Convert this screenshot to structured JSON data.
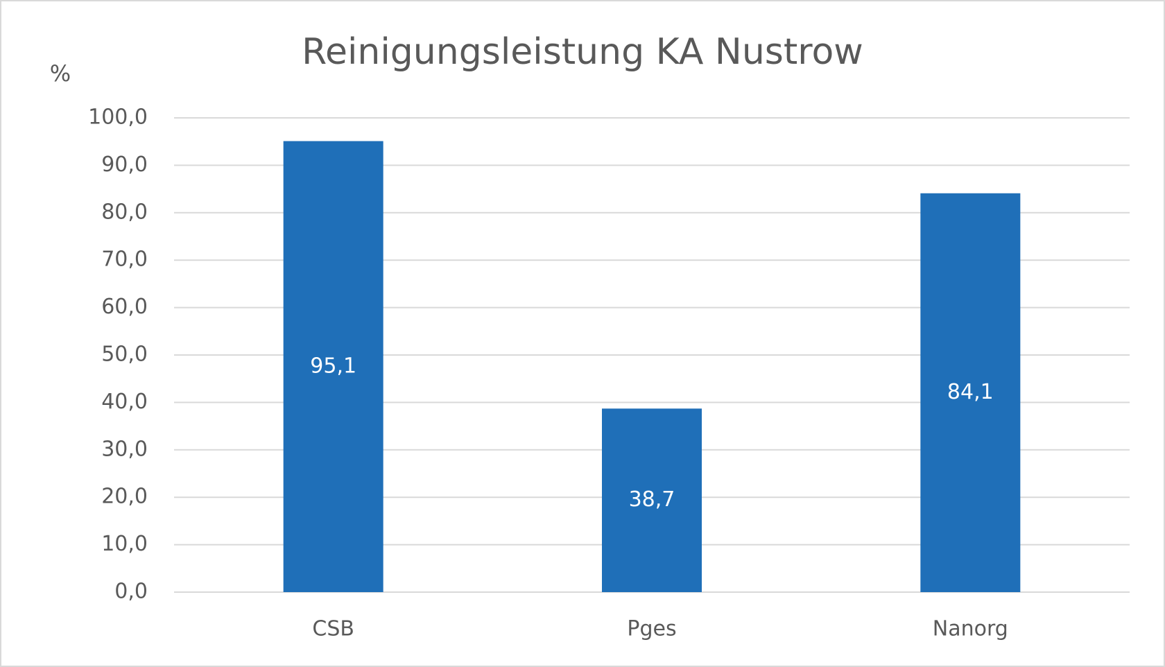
{
  "chart_data": {
    "type": "bar",
    "title": "Reinigungsleistung KA Nustrow",
    "y_label": "%",
    "categories": [
      "CSB",
      "Pges",
      "Nanorg"
    ],
    "values": [
      95.1,
      38.7,
      84.1
    ],
    "value_labels": [
      "95,1",
      "38,7",
      "84,1"
    ],
    "color": "#1f6fb8",
    "ylim": [
      0,
      100
    ],
    "yticks": [
      {
        "value": 0,
        "label": "0,0"
      },
      {
        "value": 10,
        "label": "10,0"
      },
      {
        "value": 20,
        "label": "20,0"
      },
      {
        "value": 30,
        "label": "30,0"
      },
      {
        "value": 40,
        "label": "40,0"
      },
      {
        "value": 50,
        "label": "50,0"
      },
      {
        "value": 60,
        "label": "60,0"
      },
      {
        "value": 70,
        "label": "70,0"
      },
      {
        "value": 80,
        "label": "80,0"
      },
      {
        "value": 90,
        "label": "90,0"
      },
      {
        "value": 100,
        "label": "100,0"
      }
    ],
    "grid": true
  }
}
